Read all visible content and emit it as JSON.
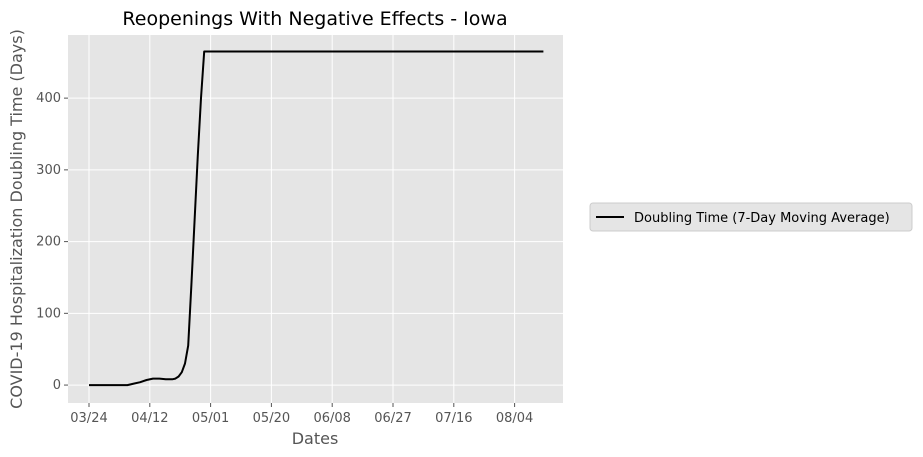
{
  "chart_data": {
    "type": "line",
    "title": "Reopenings With Negative Effects - Iowa",
    "xlabel": "Dates",
    "ylabel": "COVID-19 Hospitalization Doubling Time (Days)",
    "x_tick_labels": [
      "03/24",
      "04/12",
      "05/01",
      "05/20",
      "06/08",
      "06/27",
      "07/16",
      "08/04"
    ],
    "y_ticks": [
      0,
      100,
      200,
      300,
      400
    ],
    "ylim": [
      -25,
      488
    ],
    "grid": true,
    "legend_position": "right",
    "series": [
      {
        "name": "Doubling Time (7-Day Moving Average)",
        "color": "#000000",
        "x": [
          "03/24",
          "03/26",
          "03/28",
          "03/30",
          "04/01",
          "04/03",
          "04/05",
          "04/07",
          "04/09",
          "04/11",
          "04/13",
          "04/15",
          "04/17",
          "04/19",
          "04/20",
          "04/21",
          "04/22",
          "04/23",
          "04/24",
          "04/25",
          "04/26",
          "04/27",
          "04/28",
          "04/29",
          "04/30",
          "05/01",
          "05/10",
          "05/20",
          "06/01",
          "06/08",
          "06/20",
          "06/27",
          "07/10",
          "07/16",
          "07/30",
          "08/04",
          "08/10",
          "08/13"
        ],
        "values": [
          0,
          0,
          0,
          0,
          0,
          0,
          0,
          2,
          4,
          7,
          9,
          9,
          8,
          8,
          9,
          12,
          18,
          30,
          55,
          140,
          230,
          320,
          400,
          465,
          465,
          465,
          465,
          465,
          465,
          465,
          465,
          465,
          465,
          465,
          465,
          465,
          465,
          465
        ]
      }
    ]
  }
}
